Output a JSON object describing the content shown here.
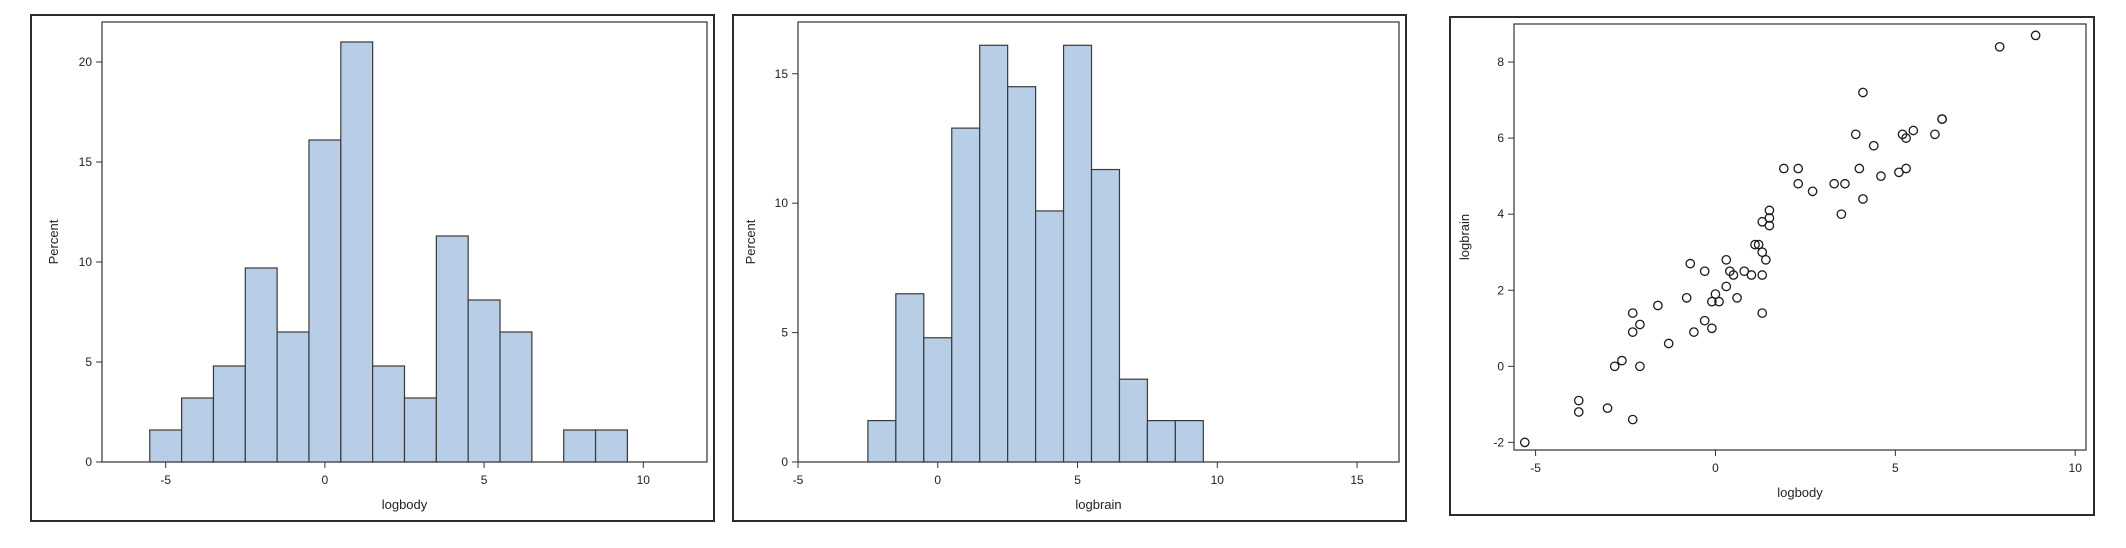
{
  "colors": {
    "bar_fill": "#b8cde6",
    "bar_stroke": "#3a3a3a",
    "axis": "#333333",
    "marker": "#1a1a1a"
  },
  "chart_data": [
    {
      "type": "bar",
      "chart_kind": "histogram",
      "xlabel": "logbody",
      "ylabel": "Percent",
      "xlim": [
        -7,
        12
      ],
      "ylim": [
        0,
        22
      ],
      "xticks": [
        -5,
        0,
        5,
        10
      ],
      "yticks": [
        0,
        5,
        10,
        15,
        20
      ],
      "bin_width": 1,
      "bins": [
        {
          "start": -5.5,
          "value": 1.6
        },
        {
          "start": -4.5,
          "value": 3.2
        },
        {
          "start": -3.5,
          "value": 4.8
        },
        {
          "start": -2.5,
          "value": 9.7
        },
        {
          "start": -1.5,
          "value": 6.5
        },
        {
          "start": -0.5,
          "value": 16.1
        },
        {
          "start": 0.5,
          "value": 21.0
        },
        {
          "start": 1.5,
          "value": 4.8
        },
        {
          "start": 2.5,
          "value": 3.2
        },
        {
          "start": 3.5,
          "value": 11.3
        },
        {
          "start": 4.5,
          "value": 8.1
        },
        {
          "start": 5.5,
          "value": 6.5
        },
        {
          "start": 7.5,
          "value": 1.6
        },
        {
          "start": 8.5,
          "value": 1.6
        }
      ]
    },
    {
      "type": "bar",
      "chart_kind": "histogram",
      "xlabel": "logbrain",
      "ylabel": "Percent",
      "xlim": [
        -5,
        16.5
      ],
      "ylim": [
        0,
        17
      ],
      "xticks": [
        -5,
        0,
        5,
        10,
        15
      ],
      "yticks": [
        0,
        5,
        10,
        15
      ],
      "bin_width": 1,
      "bins": [
        {
          "start": -2.5,
          "value": 1.6
        },
        {
          "start": -1.5,
          "value": 6.5
        },
        {
          "start": -0.5,
          "value": 4.8
        },
        {
          "start": 0.5,
          "value": 12.9
        },
        {
          "start": 1.5,
          "value": 16.1
        },
        {
          "start": 2.5,
          "value": 14.5
        },
        {
          "start": 3.5,
          "value": 9.7
        },
        {
          "start": 4.5,
          "value": 16.1
        },
        {
          "start": 5.5,
          "value": 11.3
        },
        {
          "start": 6.5,
          "value": 3.2
        },
        {
          "start": 7.5,
          "value": 1.6
        },
        {
          "start": 8.5,
          "value": 1.6
        }
      ]
    },
    {
      "type": "scatter",
      "xlabel": "logbody",
      "ylabel": "logbrain",
      "xlim": [
        -5.6,
        10.3
      ],
      "ylim": [
        -2.2,
        9.0
      ],
      "xticks": [
        -5,
        0,
        5,
        10
      ],
      "yticks": [
        -2,
        0,
        2,
        4,
        6,
        8
      ],
      "points": [
        [
          -5.3,
          -2.0
        ],
        [
          -3.8,
          -0.9
        ],
        [
          -3.8,
          -1.2
        ],
        [
          -3.0,
          -1.1
        ],
        [
          -2.8,
          0.0
        ],
        [
          -2.6,
          0.15
        ],
        [
          -2.3,
          -1.4
        ],
        [
          -2.3,
          0.9
        ],
        [
          -2.3,
          1.4
        ],
        [
          -2.1,
          0.0
        ],
        [
          -2.1,
          1.1
        ],
        [
          -1.6,
          1.6
        ],
        [
          -1.3,
          0.6
        ],
        [
          -0.8,
          1.8
        ],
        [
          -0.7,
          2.7
        ],
        [
          -0.6,
          0.9
        ],
        [
          -0.3,
          1.2
        ],
        [
          -0.3,
          2.5
        ],
        [
          -0.1,
          1.0
        ],
        [
          -0.1,
          1.7
        ],
        [
          0.0,
          1.9
        ],
        [
          0.1,
          1.7
        ],
        [
          0.3,
          2.1
        ],
        [
          0.3,
          2.8
        ],
        [
          0.4,
          2.5
        ],
        [
          0.5,
          2.4
        ],
        [
          0.6,
          1.8
        ],
        [
          0.8,
          2.5
        ],
        [
          1.0,
          2.4
        ],
        [
          1.1,
          3.2
        ],
        [
          1.2,
          3.2
        ],
        [
          1.3,
          1.4
        ],
        [
          1.3,
          2.4
        ],
        [
          1.3,
          3.0
        ],
        [
          1.3,
          3.8
        ],
        [
          1.4,
          2.8
        ],
        [
          1.5,
          3.7
        ],
        [
          1.5,
          3.9
        ],
        [
          1.5,
          4.1
        ],
        [
          1.9,
          5.2
        ],
        [
          2.3,
          4.8
        ],
        [
          2.3,
          5.2
        ],
        [
          2.7,
          4.6
        ],
        [
          3.3,
          4.8
        ],
        [
          3.5,
          4.0
        ],
        [
          3.6,
          4.8
        ],
        [
          3.9,
          6.1
        ],
        [
          4.0,
          5.2
        ],
        [
          4.1,
          4.4
        ],
        [
          4.1,
          7.2
        ],
        [
          4.4,
          5.8
        ],
        [
          4.6,
          5.0
        ],
        [
          5.1,
          5.1
        ],
        [
          5.2,
          6.1
        ],
        [
          5.3,
          5.2
        ],
        [
          5.3,
          6.0
        ],
        [
          5.5,
          6.2
        ],
        [
          6.1,
          6.1
        ],
        [
          6.3,
          6.5
        ],
        [
          6.3,
          6.5
        ],
        [
          7.9,
          8.4
        ],
        [
          8.9,
          8.7
        ]
      ]
    }
  ]
}
